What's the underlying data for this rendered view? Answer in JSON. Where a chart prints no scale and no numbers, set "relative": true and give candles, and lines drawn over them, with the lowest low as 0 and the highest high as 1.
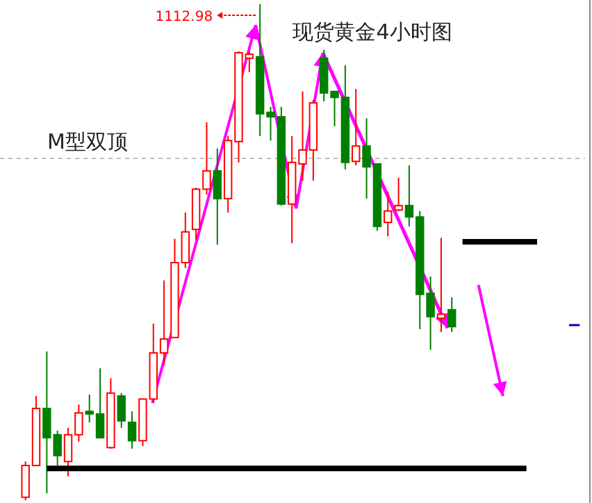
{
  "chart_data": {
    "type": "candlestick",
    "title": "现货黄金4小时图",
    "relative": true,
    "categories": [
      null,
      null,
      null,
      null,
      null,
      null,
      null,
      null,
      null,
      null,
      null,
      null,
      null,
      null,
      null,
      null,
      null,
      null,
      null,
      null,
      null,
      null,
      null,
      null,
      null,
      null,
      null,
      null,
      null,
      null,
      null,
      null,
      null,
      null,
      null,
      null,
      null,
      null,
      null,
      null,
      null,
      null,
      null,
      null,
      null,
      null,
      null,
      null,
      null,
      null,
      null,
      null,
      null
    ],
    "series": [
      {
        "ohlc": [
          [
            0.006,
            0.078,
            0,
            0.07
          ],
          [
            0.07,
            0.21,
            0.07,
            0.185
          ],
          [
            0.185,
            0.3,
            0.014,
            0.126
          ],
          [
            0.132,
            0.14,
            0.07,
            0.09
          ],
          [
            0.078,
            0.146,
            0.048,
            0.132
          ],
          [
            0.132,
            0.193,
            0.118,
            0.176
          ],
          [
            0.179,
            0.213,
            0.157,
            0.174
          ],
          [
            0.174,
            0.266,
            0.126,
            0.126
          ],
          [
            0.106,
            0.246,
            0.104,
            0.216
          ],
          [
            0.21,
            0.216,
            0.146,
            0.16
          ],
          [
            0.157,
            0.179,
            0.104,
            0.12
          ],
          [
            0.12,
            0.204,
            0.109,
            0.204
          ],
          [
            0.204,
            0.356,
            0.196,
            0.297
          ],
          [
            0.297,
            0.443,
            0.272,
            0.325
          ],
          [
            0.328,
            0.527,
            0.328,
            0.479
          ],
          [
            0.479,
            0.58,
            0.468,
            0.541
          ],
          [
            0.546,
            0.63,
            0.524,
            0.627
          ],
          [
            0.627,
            0.762,
            0.616,
            0.664
          ],
          [
            0.664,
            0.709,
            0.515,
            0.608
          ],
          [
            0.608,
            0.734,
            0.58,
            0.725
          ],
          [
            0.723,
            0.905,
            0.681,
            0.902
          ],
          [
            0.891,
            0.905,
            0.863,
            0.899
          ],
          [
            0.894,
            1,
            0.734,
            0.779
          ],
          [
            0.782,
            0.793,
            0.725,
            0.773
          ],
          [
            0.773,
            0.793,
            0.594,
            0.597
          ],
          [
            0.597,
            0.734,
            0.518,
            0.681
          ],
          [
            0.678,
            0.824,
            0.644,
            0.706
          ],
          [
            0.706,
            0.807,
            0.644,
            0.801
          ],
          [
            0.891,
            0.908,
            0.804,
            0.821
          ],
          [
            0.824,
            0.824,
            0.754,
            0.812
          ],
          [
            0.812,
            0.877,
            0.667,
            0.681
          ],
          [
            0.683,
            0.829,
            0.675,
            0.714
          ],
          [
            0.714,
            0.77,
            0.608,
            0.672
          ],
          [
            0.678,
            0.678,
            0.543,
            0.552
          ],
          [
            0.56,
            0.622,
            0.532,
            0.583
          ],
          [
            0.585,
            0.65,
            0.583,
            0.594
          ],
          [
            0.594,
            0.675,
            0.552,
            0.571
          ],
          [
            0.571,
            0.583,
            0.345,
            0.415
          ],
          [
            0.417,
            0.451,
            0.303,
            0.37
          ],
          [
            0.367,
            0.529,
            0.339,
            0.375
          ],
          [
            0.384,
            0.409,
            0.339,
            0.35
          ],
          null,
          null,
          null,
          null,
          null,
          null,
          null,
          null,
          null,
          null,
          null,
          null
        ],
        "colors": [
          "#ff0000",
          "#ff0000",
          "#008000",
          "#008000",
          "#ff0000",
          "#ff0000",
          "#008000",
          "#008000",
          "#ff0000",
          "#008000",
          "#008000",
          "#ff0000",
          "#ff0000",
          "#ff0000",
          "#ff0000",
          "#ff0000",
          "#ff0000",
          "#ff0000",
          "#008000",
          "#ff0000",
          "#ff0000",
          "#ff0000",
          "#008000",
          "#008000",
          "#008000",
          "#ff0000",
          "#ff0000",
          "#ff0000",
          "#008000",
          "#008000",
          "#008000",
          "#ff0000",
          "#008000",
          "#008000",
          "#ff0000",
          "#ff0000",
          "#008000",
          "#008000",
          "#008000",
          "#ff0000",
          "#008000",
          null,
          null,
          null,
          null,
          null,
          null,
          null,
          null,
          null,
          null,
          null,
          null
        ]
      },
      {
        "type": "line",
        "color": "#000000",
        "values": [
          null,
          null,
          0.064,
          0.064,
          0.064,
          0.064,
          0.064,
          0.064,
          0.064,
          0.064,
          0.064,
          0.064,
          0.064,
          0.064,
          0.064,
          0.064,
          0.064,
          0.064,
          0.064,
          0.064,
          0.064,
          0.064,
          0.064,
          0.064,
          0.064,
          0.064,
          0.064,
          0.064,
          0.064,
          0.064,
          0.064,
          0.064,
          0.064,
          0.064,
          0.064,
          0.064,
          0.064,
          0.064,
          0.064,
          0.064,
          0.064,
          0.064,
          0.064,
          0.064,
          0.064,
          0.064,
          0.064,
          0.064,
          null,
          null,
          null,
          null,
          null
        ]
      },
      {
        "type": "line",
        "color": "#000000",
        "values": [
          null,
          null,
          null,
          null,
          null,
          null,
          null,
          null,
          null,
          null,
          null,
          null,
          null,
          null,
          null,
          null,
          null,
          null,
          null,
          null,
          null,
          null,
          null,
          null,
          null,
          null,
          null,
          null,
          null,
          null,
          null,
          null,
          null,
          null,
          null,
          null,
          null,
          null,
          null,
          null,
          null,
          0.521,
          0.521,
          0.521,
          0.521,
          0.521,
          0.521,
          0.521,
          0.521,
          null,
          null,
          null,
          null
        ]
      },
      {
        "type": "line",
        "color": "#0000cc",
        "values": [
          null,
          null,
          null,
          null,
          null,
          null,
          null,
          null,
          null,
          null,
          null,
          null,
          null,
          null,
          null,
          null,
          null,
          null,
          null,
          null,
          null,
          null,
          null,
          null,
          null,
          null,
          null,
          null,
          null,
          null,
          null,
          null,
          null,
          null,
          null,
          null,
          null,
          null,
          null,
          null,
          null,
          null,
          null,
          null,
          null,
          null,
          null,
          null,
          null,
          null,
          null,
          0.353,
          0.353
        ]
      }
    ],
    "ref_lines": [
      {
        "axis": "y",
        "value": 0.689,
        "color": "#c0c0c0",
        "line_style": "dashed"
      }
    ],
    "annotations": [
      "M型双顶",
      "1112.98"
    ]
  }
}
